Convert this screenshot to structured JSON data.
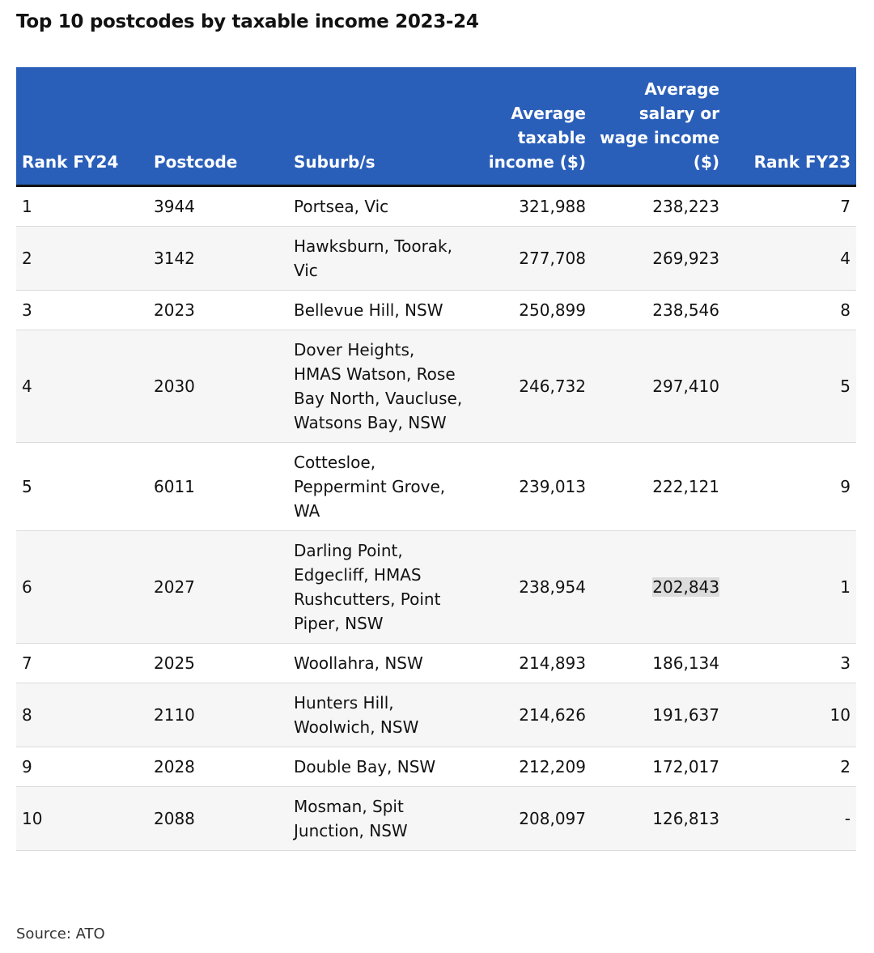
{
  "title": "Top 10 postcodes by taxable income 2023-24",
  "table": {
    "headers": [
      "Rank FY24",
      "Postcode",
      "Suburb/s",
      "Average taxable income ($)",
      "Average salary or wage income ($)",
      "Rank FY23"
    ],
    "rows": [
      [
        "1",
        "3944",
        "Portsea, Vic",
        "321,988",
        "238,223",
        "7"
      ],
      [
        "2",
        "3142",
        "Hawksburn, Toorak, Vic",
        "277,708",
        "269,923",
        "4"
      ],
      [
        "3",
        "2023",
        "Bellevue Hill, NSW",
        "250,899",
        "238,546",
        "8"
      ],
      [
        "4",
        "2030",
        "Dover Heights, HMAS Watson, Rose Bay North, Vaucluse, Watsons Bay, NSW",
        "246,732",
        "297,410",
        "5"
      ],
      [
        "5",
        "6011",
        "Cottesloe, Peppermint Grove, WA",
        "239,013",
        "222,121",
        "9"
      ],
      [
        "6",
        "2027",
        "Darling Point, Edgecliff, HMAS Rushcutters, Point Piper, NSW",
        "238,954",
        "202,843",
        "1"
      ],
      [
        "7",
        "2025",
        "Woollahra, NSW",
        "214,893",
        "186,134",
        "3"
      ],
      [
        "8",
        "2110",
        "Hunters Hill, Woolwich, NSW",
        "214,626",
        "191,637",
        "10"
      ],
      [
        "9",
        "2028",
        "Double Bay, NSW",
        "212,209",
        "172,017",
        "2"
      ],
      [
        "10",
        "2088",
        "Mosman, Spit Junction, NSW",
        "208,097",
        "126,813",
        "-"
      ]
    ]
  },
  "source": "Source: ATO"
}
